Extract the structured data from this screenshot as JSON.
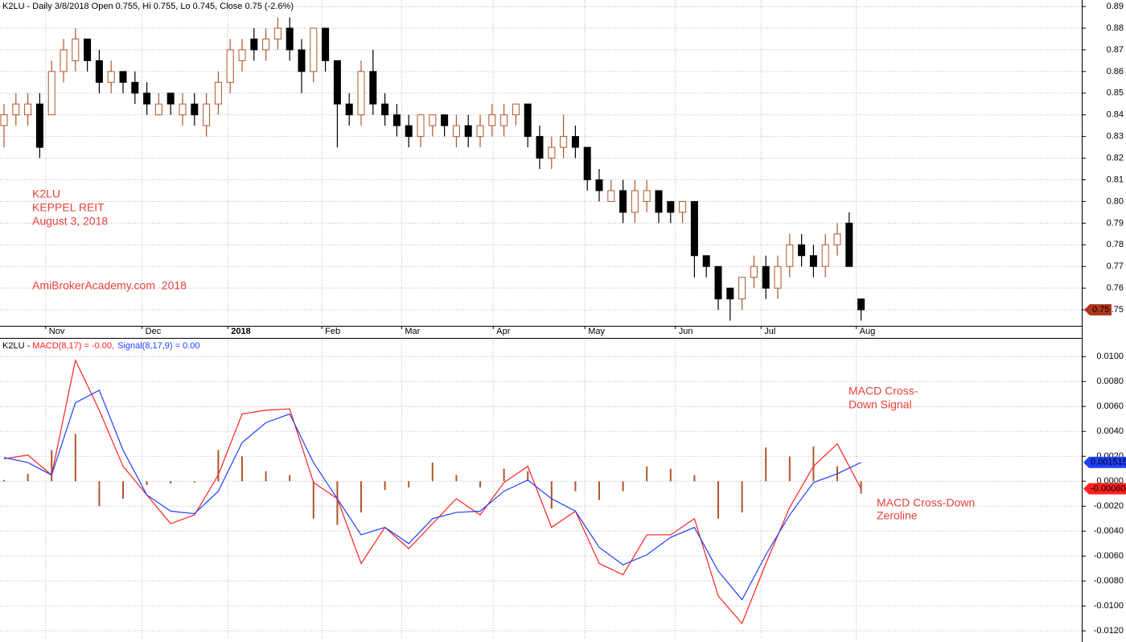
{
  "chart_data": [
    {
      "type": "candlestick",
      "title": "K2LU - Daily 3/8/2018 Open 0.755, Hi 0.755, Lo 0.745, Close 0.75 (-2.6%)",
      "annotations": [
        "K2LU",
        "KEPPEL REIT",
        "August 3, 2018",
        "AmiBrokerAcademy.com  2018"
      ],
      "up_color": "#b0562a",
      "down_color": "#000000",
      "grid": true,
      "xlim": [
        -0.338,
        90.54
      ],
      "xticks": [
        {
          "value": 3.5,
          "label": "Nov"
        },
        {
          "value": 11.6,
          "label": "Dec"
        },
        {
          "value": 18.8,
          "label": "2018"
        },
        {
          "value": 26.7,
          "label": "Feb"
        },
        {
          "value": 33.4,
          "label": "Mar"
        },
        {
          "value": 41.1,
          "label": "Apr"
        },
        {
          "value": 48.8,
          "label": "May"
        },
        {
          "value": 56.4,
          "label": "Jun"
        },
        {
          "value": 63.6,
          "label": "Jul"
        },
        {
          "value": 71.6,
          "label": "Aug"
        }
      ],
      "ylim": [
        0.7426,
        0.893
      ],
      "yticks": [
        0.75,
        0.76,
        0.77,
        0.78,
        0.79,
        {
          "value": 0.8,
          "label": "0.80"
        },
        0.81,
        0.82,
        0.83,
        0.84,
        0.85,
        0.86,
        0.87,
        0.88,
        0.89
      ],
      "series": [
        {
          "open": [
            0.835,
            0.84,
            0.84,
            0.845,
            0.84,
            0.86,
            0.865,
            0.875,
            0.865,
            0.855,
            0.86,
            0.855,
            0.85,
            0.84,
            0.85,
            0.84,
            0.845,
            0.835,
            0.845,
            0.855,
            0.865,
            0.875,
            0.87,
            0.875,
            0.88,
            0.87,
            0.86,
            0.88,
            0.865,
            0.845,
            0.84,
            0.86,
            0.845,
            0.84,
            0.835,
            0.83,
            0.835,
            0.84,
            0.83,
            0.835,
            0.83,
            0.835,
            0.835,
            0.84,
            0.845,
            0.83,
            0.82,
            0.825,
            0.83,
            0.825,
            0.81,
            0.8,
            0.805,
            0.795,
            0.8,
            0.805,
            0.8,
            0.795,
            0.8,
            0.775,
            0.77,
            0.76,
            0.755,
            0.765,
            0.77,
            0.76,
            0.77,
            0.78,
            0.775,
            0.77,
            0.78,
            0.79,
            0.755
          ],
          "high": [
            0.845,
            0.85,
            0.85,
            0.85,
            0.865,
            0.875,
            0.88,
            0.875,
            0.87,
            0.865,
            0.86,
            0.86,
            0.855,
            0.85,
            0.85,
            0.85,
            0.85,
            0.85,
            0.86,
            0.875,
            0.875,
            0.88,
            0.88,
            0.885,
            0.885,
            0.875,
            0.88,
            0.88,
            0.865,
            0.85,
            0.865,
            0.87,
            0.85,
            0.845,
            0.84,
            0.84,
            0.84,
            0.84,
            0.84,
            0.84,
            0.84,
            0.845,
            0.845,
            0.845,
            0.845,
            0.835,
            0.83,
            0.84,
            0.835,
            0.825,
            0.815,
            0.81,
            0.81,
            0.81,
            0.81,
            0.805,
            0.8,
            0.8,
            0.8,
            0.775,
            0.77,
            0.76,
            0.765,
            0.775,
            0.775,
            0.775,
            0.785,
            0.785,
            0.78,
            0.785,
            0.79,
            0.795,
            0.755
          ],
          "low": [
            0.825,
            0.835,
            0.835,
            0.82,
            0.84,
            0.855,
            0.86,
            0.86,
            0.85,
            0.85,
            0.85,
            0.845,
            0.84,
            0.84,
            0.84,
            0.835,
            0.835,
            0.83,
            0.84,
            0.85,
            0.86,
            0.865,
            0.865,
            0.87,
            0.865,
            0.85,
            0.855,
            0.86,
            0.825,
            0.835,
            0.835,
            0.84,
            0.835,
            0.83,
            0.825,
            0.825,
            0.83,
            0.83,
            0.825,
            0.825,
            0.825,
            0.83,
            0.83,
            0.835,
            0.825,
            0.815,
            0.815,
            0.82,
            0.82,
            0.805,
            0.8,
            0.8,
            0.79,
            0.79,
            0.795,
            0.79,
            0.79,
            0.79,
            0.765,
            0.765,
            0.75,
            0.745,
            0.75,
            0.76,
            0.755,
            0.755,
            0.765,
            0.77,
            0.765,
            0.765,
            0.775,
            0.77,
            0.745
          ],
          "close": [
            0.84,
            0.845,
            0.845,
            0.825,
            0.86,
            0.87,
            0.875,
            0.865,
            0.855,
            0.86,
            0.855,
            0.85,
            0.845,
            0.845,
            0.845,
            0.845,
            0.84,
            0.845,
            0.855,
            0.87,
            0.87,
            0.87,
            0.875,
            0.88,
            0.87,
            0.86,
            0.88,
            0.865,
            0.845,
            0.84,
            0.86,
            0.845,
            0.84,
            0.835,
            0.83,
            0.84,
            0.84,
            0.835,
            0.835,
            0.83,
            0.835,
            0.84,
            0.84,
            0.845,
            0.83,
            0.82,
            0.825,
            0.83,
            0.825,
            0.81,
            0.805,
            0.805,
            0.795,
            0.805,
            0.805,
            0.795,
            0.795,
            0.8,
            0.775,
            0.77,
            0.755,
            0.755,
            0.765,
            0.77,
            0.76,
            0.77,
            0.78,
            0.775,
            0.77,
            0.78,
            0.785,
            0.77,
            0.75
          ]
        }
      ]
    },
    {
      "type": "macd",
      "title": "K2LU - ",
      "annotations": [
        "MACD Cross-",
        "Down Signal",
        "MACD Cross-Down",
        "Zeroline"
      ],
      "grid": true,
      "xlim": [
        -0.338,
        90.54
      ],
      "ylim": [
        -0.0127,
        0.0115
      ],
      "yticks": [
        {
          "value": 0.01,
          "label": "0.0100"
        },
        {
          "value": 0.008,
          "label": "0.0080"
        },
        {
          "value": 0.006,
          "label": "0.0060"
        },
        {
          "value": 0.004,
          "label": "0.0040"
        },
        {
          "value": 0.002,
          "label": "0.0020"
        },
        {
          "value": 0,
          "label": "0.0000"
        },
        {
          "value": -0.002,
          "label": "-0.0020"
        },
        {
          "value": -0.004,
          "label": "-0.0040"
        },
        {
          "value": -0.006,
          "label": "-0.0060"
        },
        {
          "value": -0.008,
          "label": "-0.0080"
        },
        {
          "value": -0.01,
          "label": "-0.0100"
        },
        {
          "value": -0.012,
          "label": "-0.0120"
        }
      ],
      "x": [
        0,
        2,
        4,
        6,
        8,
        10,
        12,
        14,
        16,
        18,
        20,
        22,
        24,
        26,
        28,
        30,
        32,
        34,
        36,
        38,
        40,
        42,
        44,
        46,
        48,
        50,
        52,
        54,
        56,
        58,
        60,
        62,
        64,
        66,
        68,
        70,
        72
      ],
      "series": [
        {
          "type": "histogram",
          "color": "#b0562a",
          "values": [
            0.0001,
            0.0006,
            0.0025,
            0.0038,
            -0.002,
            -0.0014,
            -0.0003,
            -0.0002,
            -0.0001,
            0.0025,
            0.002,
            0.0008,
            0.0005,
            -0.003,
            -0.0035,
            -0.0025,
            -0.0007,
            -0.0005,
            0.0015,
            0.0005,
            -0.0005,
            0.001,
            0.0008,
            -0.0022,
            -0.0008,
            -0.0015,
            -0.0008,
            0.0012,
            0.001,
            0.0005,
            -0.003,
            -0.0025,
            0.0027,
            0.002,
            0.0028,
            0.0012,
            -0.001
          ]
        },
        {
          "type": "line",
          "name": "MACD(8,17) = -0.00,",
          "color": "#ff2020",
          "last_label": "-0.00060",
          "values": [
            0.0018,
            0.0021,
            0.0005,
            0.0097,
            0.0057,
            0.0012,
            -0.0011,
            -0.0034,
            -0.0027,
            0.0005,
            0.0054,
            0.0057,
            0.0058,
            -0.0001,
            -0.0014,
            -0.0066,
            -0.0037,
            -0.0054,
            -0.0034,
            -0.0014,
            -0.0027,
            -0.0001,
            0.0012,
            -0.0037,
            -0.0024,
            -0.0066,
            -0.0075,
            -0.0043,
            -0.0043,
            -0.003,
            -0.0092,
            -0.0114,
            -0.0066,
            -0.0021,
            0.0012,
            0.003,
            -0.0006
          ]
        },
        {
          "type": "line",
          "name": "Signal(8,17,9) = 0.00",
          "color": "#2040ff",
          "last_label": "0.001515",
          "values": [
            0.0019,
            0.0015,
            0.0005,
            0.0063,
            0.0073,
            0.0025,
            -0.0011,
            -0.0024,
            -0.0026,
            -0.0008,
            0.0031,
            0.0047,
            0.0054,
            0.0015,
            -0.0014,
            -0.0043,
            -0.0037,
            -0.005,
            -0.003,
            -0.0025,
            -0.0024,
            -0.0008,
            0.0001,
            -0.0014,
            -0.0024,
            -0.0053,
            -0.0067,
            -0.0059,
            -0.0045,
            -0.0037,
            -0.0072,
            -0.0095,
            -0.0059,
            -0.0027,
            -0.0001,
            0.0006,
            0.001515
          ]
        }
      ]
    }
  ]
}
